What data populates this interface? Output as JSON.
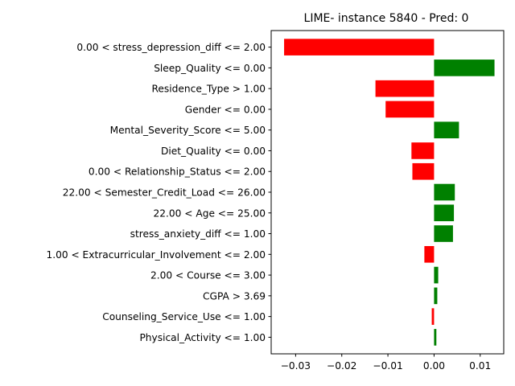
{
  "chart_data": {
    "type": "bar",
    "orientation": "horizontal",
    "title": "LIME- instance 5840 - Pred: 0",
    "xlabel": "",
    "ylabel": "",
    "xlim": [
      -0.0353,
      0.0151
    ],
    "xticks": [
      -0.03,
      -0.02,
      -0.01,
      0.0,
      0.01
    ],
    "xtick_labels": [
      "−0.03",
      "−0.02",
      "−0.01",
      "0.00",
      "0.01"
    ],
    "grid": false,
    "legend": "none",
    "colors": {
      "negative": "#ff0000",
      "positive": "#008000"
    },
    "categories": [
      "0.00 < stress_depression_diff <= 2.00",
      "Sleep_Quality <= 0.00",
      "Residence_Type > 1.00",
      "Gender <= 0.00",
      "Mental_Severity_Score <= 5.00",
      "Diet_Quality <= 0.00",
      "0.00 < Relationship_Status <= 2.00",
      "22.00 < Semester_Credit_Load <= 26.00",
      "22.00 < Age <= 25.00",
      "stress_anxiety_diff <= 1.00",
      "1.00 < Extracurricular_Involvement <= 2.00",
      "2.00 < Course <= 3.00",
      "CGPA > 3.69",
      "Counseling_Service_Use <= 1.00",
      "Physical_Activity <= 1.00"
    ],
    "values": [
      -0.0325,
      0.0131,
      -0.0127,
      -0.0105,
      0.0054,
      -0.0049,
      -0.0047,
      0.0045,
      0.0043,
      0.0041,
      -0.0021,
      0.0009,
      0.0007,
      -0.0005,
      0.0005
    ]
  }
}
